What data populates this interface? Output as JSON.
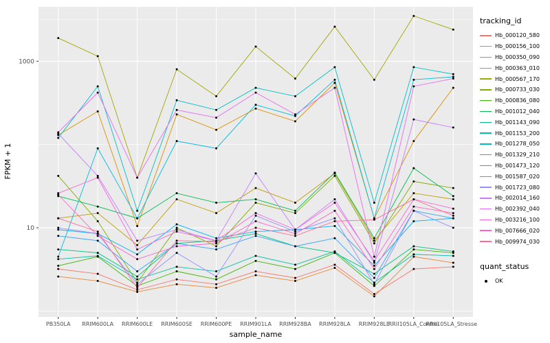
{
  "axes": {
    "x_title": "sample_name",
    "y_title": "FPKM + 1"
  },
  "legend": {
    "tracking_title": "tracking_id",
    "quant_title": "quant_status",
    "quant_items": [
      "OK"
    ]
  },
  "chart_data": {
    "type": "line",
    "title": "",
    "xlabel": "sample_name",
    "ylabel": "FPKM + 1",
    "y_scale": "log10",
    "ylim": [
      0.85,
      4500
    ],
    "y_ticks": [
      1000,
      10
    ],
    "y_tick_labels": [
      "1000",
      "10"
    ],
    "minor_gridlines": [
      1,
      100,
      3162
    ],
    "panel_background": "#EBEBEB",
    "gridline_color": "#FFFFFF",
    "point_color": "#000000",
    "axis_text_color": "#4D4D4D",
    "legend_position": "right",
    "grid": true,
    "categories": [
      "PB350LA",
      "RRIM600LA",
      "RRIM600LE",
      "RRIM600SE",
      "RRIM600PE",
      "RRIM901LA",
      "RRIM928BA",
      "RRIM928LA",
      "RRIM928LE",
      "RRII105LA_Control",
      "RRII105LA_Stressed"
    ],
    "series": [
      {
        "name": "Hb_000120_580",
        "color": "#F8766D",
        "values": [
          3.2,
          2.8,
          1.8,
          2.4,
          2.1,
          3.0,
          2.5,
          3.6,
          1.6,
          3.2,
          3.4
        ]
      },
      {
        "name": "Hb_000156_100",
        "color": "#EA8331",
        "values": [
          2.6,
          2.3,
          1.7,
          2.1,
          1.9,
          2.7,
          2.3,
          3.3,
          1.5,
          4.5,
          3.8
        ]
      },
      {
        "name": "Hb_000350_090",
        "color": "#D89000",
        "values": [
          130,
          250,
          10.5,
          230,
          150,
          270,
          190,
          550,
          13,
          110,
          480
        ]
      },
      {
        "name": "Hb_000363_010",
        "color": "#C09B00",
        "values": [
          13,
          15,
          6.2,
          22,
          15,
          30,
          20,
          45,
          7,
          26,
          22
        ]
      },
      {
        "name": "Hb_000567_170",
        "color": "#A3A500",
        "values": [
          1900,
          1150,
          40,
          800,
          380,
          1500,
          620,
          2600,
          600,
          3500,
          2400
        ]
      },
      {
        "name": "Hb_000733_030",
        "color": "#7CAE00",
        "values": [
          42,
          12,
          2.2,
          10,
          6,
          20,
          15,
          42,
          6.5,
          36,
          30
        ]
      },
      {
        "name": "Hb_000836_080",
        "color": "#39B600",
        "values": [
          3.5,
          4.5,
          2.0,
          3.0,
          2.4,
          4.0,
          3.2,
          5.0,
          2.0,
          5.5,
          5.0
        ]
      },
      {
        "name": "Hb_001012_040",
        "color": "#00BB4E",
        "values": [
          24,
          18,
          13,
          26,
          20,
          22,
          16,
          46,
          7.5,
          52,
          24
        ]
      },
      {
        "name": "Hb_001143_090",
        "color": "#00BF7D",
        "values": [
          5.5,
          5.0,
          2.6,
          6.5,
          7.0,
          8.5,
          6.0,
          5.0,
          2.8,
          6.0,
          5.2
        ]
      },
      {
        "name": "Hb_001153_200",
        "color": "#00C1A3",
        "values": [
          4.2,
          4.6,
          2.4,
          3.4,
          3.0,
          4.6,
          3.6,
          5.2,
          2.2,
          4.8,
          4.6
        ]
      },
      {
        "name": "Hb_001278_050",
        "color": "#00BFC4",
        "values": [
          120,
          500,
          16,
          340,
          260,
          480,
          380,
          850,
          20,
          850,
          700
        ]
      },
      {
        "name": "Hb_001329_210",
        "color": "#00BAE0",
        "values": [
          4.5,
          90,
          13,
          110,
          90,
          300,
          220,
          600,
          13,
          600,
          650
        ]
      },
      {
        "name": "Hb_001473_120",
        "color": "#00B0F6",
        "values": [
          9.5,
          8.5,
          4.8,
          11,
          7.5,
          9.0,
          9.5,
          10.5,
          3.5,
          12,
          13
        ]
      },
      {
        "name": "Hb_001587_020",
        "color": "#35A2FF",
        "values": [
          8.0,
          7.0,
          3.0,
          6.5,
          5.5,
          8.0,
          6.0,
          7.5,
          2.5,
          16,
          13
        ]
      },
      {
        "name": "Hb_001723_080",
        "color": "#9590FF",
        "values": [
          10,
          8.5,
          2.1,
          5.0,
          2.6,
          14,
          9.0,
          13,
          2.1,
          16,
          10
        ]
      },
      {
        "name": "Hb_002014_160",
        "color": "#C77CFF",
        "values": [
          135,
          42,
          7.0,
          9.5,
          7.0,
          45,
          9.5,
          22,
          3.8,
          200,
          160
        ]
      },
      {
        "name": "Hb_002392_040",
        "color": "#E76BF3",
        "values": [
          140,
          420,
          40,
          260,
          210,
          420,
          230,
          480,
          4.5,
          500,
          620
        ]
      },
      {
        "name": "Hb_003216_100",
        "color": "#FA62DB",
        "values": [
          26,
          40,
          5.5,
          9.0,
          7.0,
          15,
          9.5,
          20,
          4.0,
          22,
          17
        ]
      },
      {
        "name": "Hb_007666_020",
        "color": "#FF61CC",
        "values": [
          25,
          8.0,
          4.2,
          6.0,
          6.5,
          12,
          8.5,
          16,
          3.2,
          18,
          15
        ]
      },
      {
        "name": "Hb_009974_030",
        "color": "#FF6A98",
        "values": [
          13,
          9.0,
          1.9,
          7.0,
          6.8,
          10,
          8.0,
          12,
          12.5,
          22,
          14
        ]
      }
    ]
  }
}
